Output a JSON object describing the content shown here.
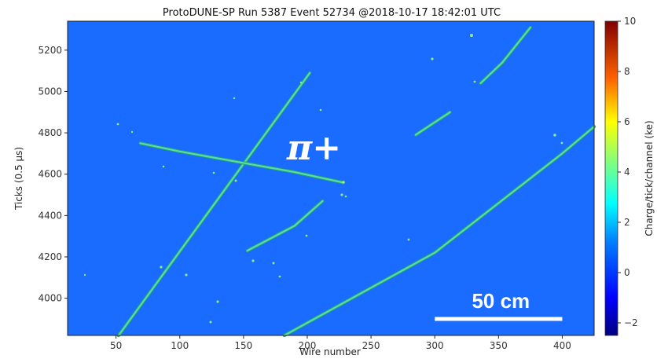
{
  "chart_data": {
    "type": "heatmap",
    "title": "ProtoDUNE-SP Run 5387 Event 52734 @2018-10-17 18:42:01 UTC",
    "xlabel": "Wire number",
    "ylabel": "Ticks (0.5 μs)",
    "xlim": [
      12,
      425
    ],
    "ylim": [
      3820,
      5340
    ],
    "xticks": [
      50,
      100,
      150,
      200,
      250,
      300,
      350,
      400
    ],
    "yticks": [
      4000,
      4200,
      4400,
      4600,
      4800,
      5000,
      5200
    ],
    "colorbar": {
      "label": "Charge/tick/channel (ke)",
      "range": [
        -2.5,
        10
      ],
      "ticks": [
        -2,
        0,
        2,
        4,
        6,
        8,
        10
      ],
      "colormap": "jet"
    },
    "background_color": "#1a6bff",
    "track_color": "#4fe0b0",
    "annotations": {
      "particle_label": "π+",
      "scale_bar_label": "50 cm",
      "scale_bar_wires": [
        300,
        400
      ],
      "scale_bar_tick": 3900
    },
    "tracks": [
      {
        "name": "steep-track",
        "points": [
          [
            52,
            3820
          ],
          [
            202,
            5090
          ]
        ]
      },
      {
        "name": "pion-track",
        "points": [
          [
            69,
            4750
          ],
          [
            100,
            4710
          ],
          [
            140,
            4665
          ],
          [
            190,
            4610
          ],
          [
            228,
            4560
          ]
        ]
      },
      {
        "name": "long-diagonal-track",
        "points": [
          [
            182,
            3820
          ],
          [
            300,
            4220
          ],
          [
            400,
            4700
          ],
          [
            425,
            4830
          ]
        ]
      },
      {
        "name": "short-track-mid",
        "points": [
          [
            153,
            4230
          ],
          [
            190,
            4350
          ],
          [
            212,
            4470
          ]
        ]
      },
      {
        "name": "short-segment-right",
        "points": [
          [
            285,
            4790
          ],
          [
            312,
            4900
          ]
        ]
      },
      {
        "name": "upper-right-track",
        "points": [
          [
            336,
            5040
          ],
          [
            353,
            5140
          ],
          [
            375,
            5310
          ]
        ]
      }
    ]
  }
}
